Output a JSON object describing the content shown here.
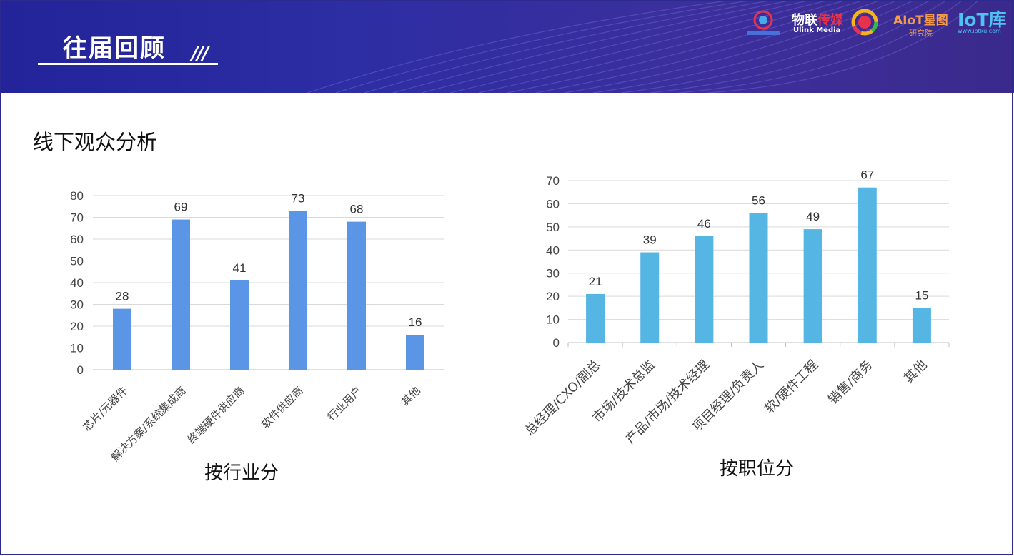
{
  "header": {
    "title": "往届回顾",
    "slashes": "///",
    "logos": {
      "ulink_cn_prefix": "物联",
      "ulink_cn_accent": "传媒",
      "ulink_en": "Ulink Media",
      "aiot_name": "AIoT星图",
      "aiot_sub": "研究院",
      "iot_name": "IoT库",
      "iot_url": "www.iotku.com"
    }
  },
  "section_title": "线下观众分析",
  "captions": {
    "industry": "按行业分",
    "position": "按职位分"
  },
  "colors": {
    "header_bg": "#2d2ea3",
    "bar_industry": "#5b95e6",
    "bar_position": "#55b6e4",
    "grid": "#d9d9d9"
  },
  "chart_data": [
    {
      "type": "bar",
      "title": "",
      "xlabel": "按行业分",
      "ylabel": "",
      "categories": [
        "芯片/元器件",
        "解决方案/系统集成商",
        "终端硬件供应商",
        "软件供应商",
        "行业用户",
        "其他"
      ],
      "values": [
        28,
        69,
        41,
        73,
        68,
        16
      ],
      "ylim": [
        0,
        80
      ],
      "yticks": [
        0,
        10,
        20,
        30,
        40,
        50,
        60,
        70,
        80
      ],
      "grid": true,
      "legend": "none"
    },
    {
      "type": "bar",
      "title": "",
      "xlabel": "按职位分",
      "ylabel": "",
      "categories": [
        "总经理/CXO/副总",
        "市场/技术总监",
        "产品/市场/技术经理",
        "项目经理/负责人",
        "软/硬件工程",
        "销售/商务",
        "其他"
      ],
      "values": [
        21,
        39,
        46,
        56,
        49,
        67,
        15
      ],
      "ylim": [
        0,
        70
      ],
      "yticks": [
        0,
        10,
        20,
        30,
        40,
        50,
        60,
        70
      ],
      "grid": true,
      "legend": "none"
    }
  ]
}
